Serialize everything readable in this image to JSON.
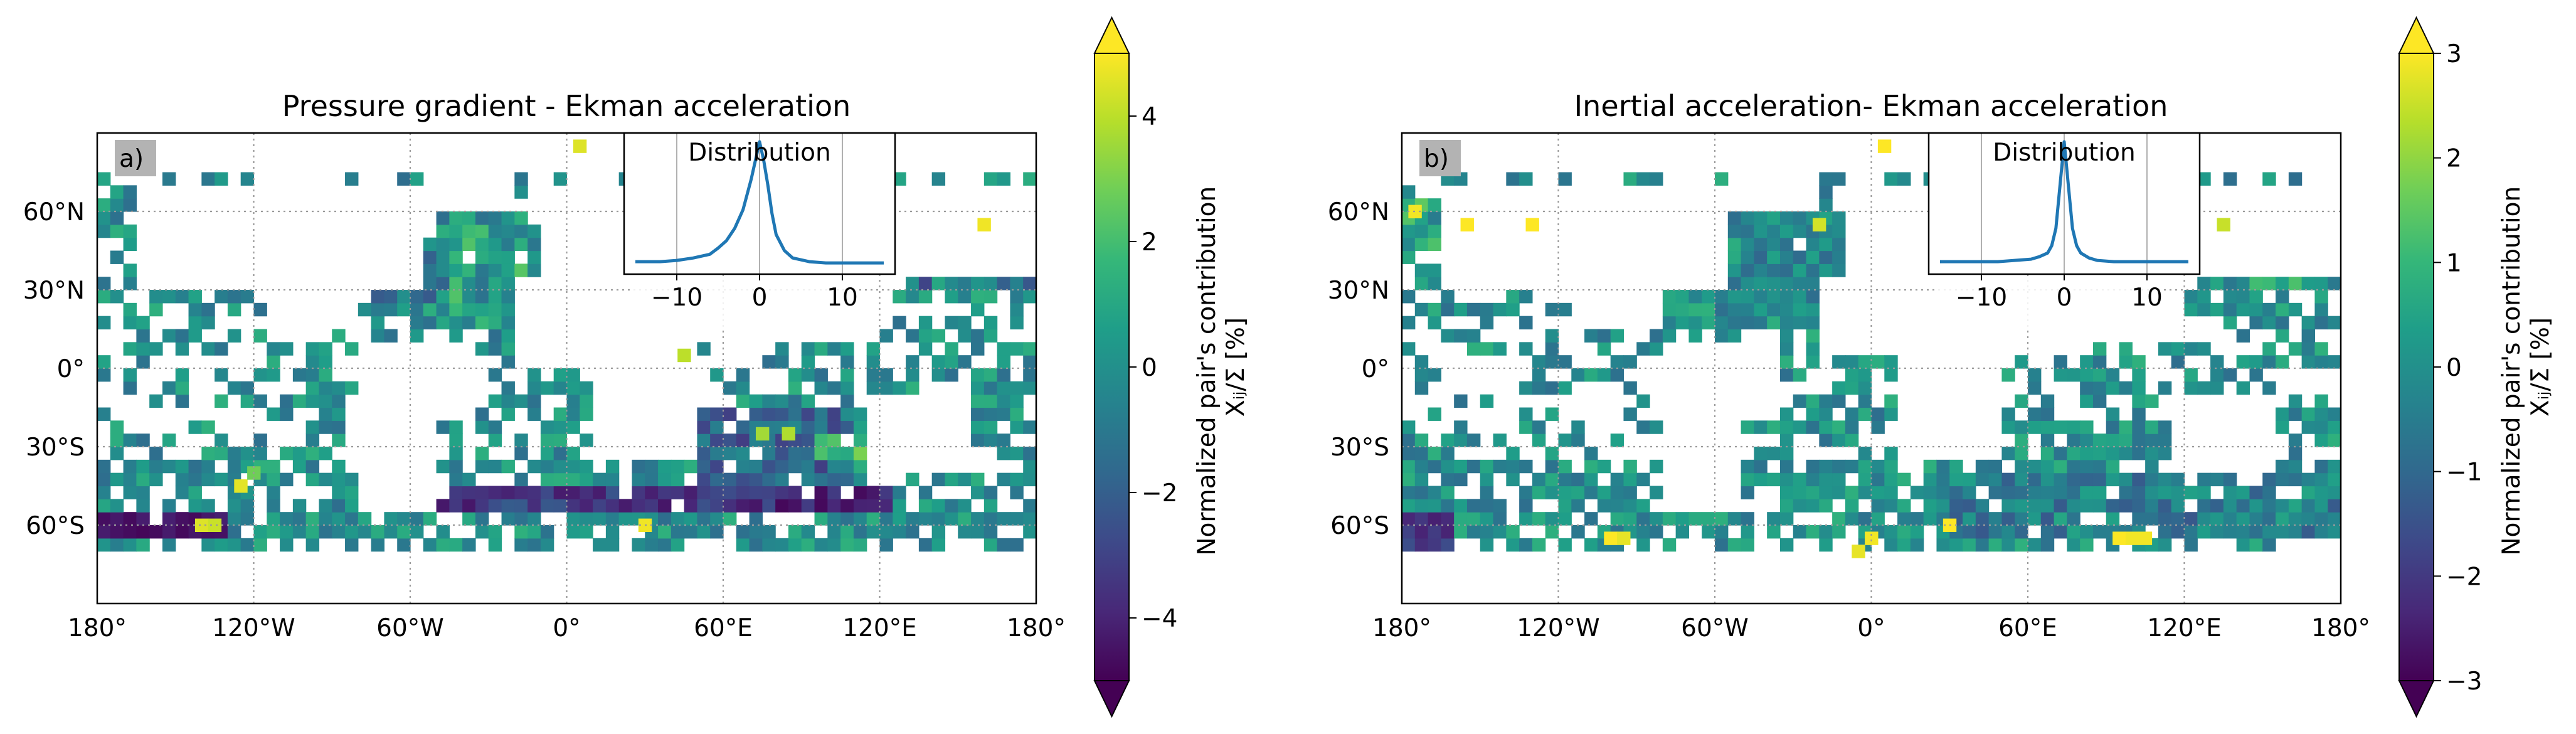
{
  "colors": {
    "land": "#efecdb",
    "ocean": "#ffffff",
    "coastline": "#000000",
    "gridline": "#9a9a9a",
    "dist_line": "#1f77b4",
    "tag_bg": "#b3b3b3",
    "viridis": [
      "#440154",
      "#482878",
      "#3e4989",
      "#31688e",
      "#26828e",
      "#1f9e89",
      "#35b779",
      "#6ece58",
      "#b5de2b",
      "#fde725"
    ]
  },
  "chart_data": [
    {
      "type": "heatmap",
      "title": "Pressure gradient - Ekman acceleration",
      "panel_tag": "a)",
      "colormap": "viridis",
      "colorbar": {
        "range": [
          -5,
          5
        ],
        "ticks": [
          -4,
          -2,
          0,
          2,
          4
        ],
        "tick_labels": [
          "−4",
          "−2",
          "0",
          "2",
          "4"
        ],
        "label_line1": "Normalized pair's contribution",
        "label_line2": "Xᵢⱼ/Σ [%]",
        "extend": "both"
      },
      "x_ticks": [
        "180°",
        "120°W",
        "60°W",
        "0°",
        "60°E",
        "120°E",
        "180°"
      ],
      "y_ticks": [
        "60°N",
        "30°N",
        "0°",
        "30°S",
        "60°S"
      ],
      "grid": true,
      "inset": {
        "title": "Distribution",
        "x_ticks": [
          "−10",
          "0",
          "10"
        ],
        "xlim": [
          -15,
          15
        ],
        "x": [
          -15,
          -12,
          -10,
          -8,
          -6,
          -5,
          -4,
          -3,
          -2,
          -1,
          -0.5,
          0,
          0.5,
          1,
          1.5,
          2,
          3,
          4,
          6,
          8,
          10,
          12,
          15
        ],
        "y": [
          0.03,
          0.03,
          0.04,
          0.06,
          0.09,
          0.14,
          0.2,
          0.3,
          0.45,
          0.7,
          0.85,
          1.0,
          0.85,
          0.65,
          0.42,
          0.25,
          0.12,
          0.06,
          0.03,
          0.02,
          0.02,
          0.02,
          0.02
        ]
      },
      "data": {
        "lat_range": [
          -90,
          90
        ],
        "lon_range": [
          -180,
          180
        ],
        "cell_degrees": 5,
        "features": [
          {
            "lon_min": -45,
            "lon_max": -15,
            "lat_min": 15,
            "lat_max": 55,
            "value": 0.6,
            "noise": 1.8
          },
          {
            "lon_min": -75,
            "lon_max": -45,
            "lat_min": 25,
            "lat_max": 45,
            "value": -0.8,
            "noise": 1.5
          },
          {
            "lon_min": 50,
            "lon_max": 110,
            "lat_min": -45,
            "lat_max": -15,
            "value": -1.6,
            "noise": 1.6
          },
          {
            "lon_min": 95,
            "lon_max": 115,
            "lat_min": -35,
            "lat_max": -25,
            "value": 2.2,
            "noise": 1.2
          },
          {
            "lon_min": 130,
            "lon_max": 180,
            "lat_min": 30,
            "lat_max": 50,
            "value": -1.0,
            "noise": 2.0
          },
          {
            "lon_min": 135,
            "lon_max": 180,
            "lat_min": 50,
            "lat_max": 65,
            "value": -0.6,
            "noise": 2.4
          },
          {
            "lon_min": -180,
            "lon_max": -130,
            "lat_min": -65,
            "lat_max": -55,
            "value": -4.5,
            "noise": 0.4
          },
          {
            "lon_min": -60,
            "lon_max": 20,
            "lat_min": -55,
            "lat_max": -45,
            "value": -3.2,
            "noise": 1.2
          },
          {
            "lon_min": 20,
            "lon_max": 80,
            "lat_min": -55,
            "lat_max": -45,
            "value": -3.4,
            "noise": 1.0
          },
          {
            "lon_min": 80,
            "lon_max": 125,
            "lat_min": -55,
            "lat_max": -45,
            "value": -4.0,
            "noise": 0.8
          }
        ],
        "highlights": [
          {
            "lon": -140,
            "lat": -60,
            "value": 4.5
          },
          {
            "lon": -135,
            "lat": -60,
            "value": 4.2
          },
          {
            "lon": -125,
            "lat": -45,
            "value": 4.6
          },
          {
            "lon": 30,
            "lat": -60,
            "value": 4.8
          },
          {
            "lon": 5,
            "lat": 85,
            "value": 4.5
          },
          {
            "lon": 45,
            "lat": 5,
            "value": 4.0
          },
          {
            "lon": 160,
            "lat": 55,
            "value": 4.8
          },
          {
            "lon": 75,
            "lat": -25,
            "value": 3.6
          },
          {
            "lon": 85,
            "lat": -25,
            "value": 3.8
          },
          {
            "lon": -120,
            "lat": -40,
            "value": 2.8
          }
        ]
      }
    },
    {
      "type": "heatmap",
      "title": "Inertial acceleration- Ekman acceleration",
      "panel_tag": "b)",
      "colormap": "viridis",
      "colorbar": {
        "range": [
          -3,
          3
        ],
        "ticks": [
          -3,
          -2,
          -1,
          0,
          1,
          2,
          3
        ],
        "tick_labels": [
          "−3",
          "−2",
          "−1",
          "0",
          "1",
          "2",
          "3"
        ],
        "label_line1": "Normalized pair's contribution",
        "label_line2": "Xᵢⱼ/Σ [%]",
        "extend": "both"
      },
      "x_ticks": [
        "180°",
        "120°W",
        "60°W",
        "0°",
        "60°E",
        "120°E",
        "180°"
      ],
      "y_ticks": [
        "60°N",
        "30°N",
        "0°",
        "30°S",
        "60°S"
      ],
      "grid": true,
      "inset": {
        "title": "Distribution",
        "x_ticks": [
          "−10",
          "0",
          "10"
        ],
        "xlim": [
          -15,
          15
        ],
        "x": [
          -15,
          -12,
          -10,
          -8,
          -6,
          -4,
          -3,
          -2,
          -1.5,
          -1,
          -0.5,
          0,
          0.5,
          1,
          1.5,
          2,
          3,
          4,
          6,
          8,
          10,
          12,
          15
        ],
        "y": [
          0.03,
          0.03,
          0.03,
          0.03,
          0.04,
          0.05,
          0.07,
          0.1,
          0.16,
          0.3,
          0.65,
          1.0,
          0.65,
          0.3,
          0.16,
          0.1,
          0.06,
          0.04,
          0.03,
          0.03,
          0.03,
          0.03,
          0.03
        ]
      },
      "data": {
        "lat_range": [
          -90,
          90
        ],
        "lon_range": [
          -180,
          180
        ],
        "cell_degrees": 5,
        "features": [
          {
            "lon_min": -50,
            "lon_max": -15,
            "lat_min": 20,
            "lat_max": 50,
            "value": -0.3,
            "noise": 1.2
          },
          {
            "lon_min": -180,
            "lon_max": -150,
            "lat_min": 45,
            "lat_max": 65,
            "value": 0.5,
            "noise": 1.8
          },
          {
            "lon_min": 130,
            "lon_max": 180,
            "lat_min": 30,
            "lat_max": 65,
            "value": 0.2,
            "noise": 1.8
          },
          {
            "lon_min": 20,
            "lon_max": 180,
            "lat_min": -65,
            "lat_max": -40,
            "value": -0.4,
            "noise": 1.6
          },
          {
            "lon_min": -180,
            "lon_max": -160,
            "lat_min": -70,
            "lat_max": -55,
            "value": -2.0,
            "noise": 0.8
          }
        ],
        "highlights": [
          {
            "lon": -175,
            "lat": 60,
            "value": 2.9
          },
          {
            "lon": -155,
            "lat": 55,
            "value": 3.0
          },
          {
            "lon": -130,
            "lat": 55,
            "value": 3.0
          },
          {
            "lon": -100,
            "lat": -65,
            "value": 3.0
          },
          {
            "lon": -95,
            "lat": -65,
            "value": 2.8
          },
          {
            "lon": 0,
            "lat": -65,
            "value": 2.9
          },
          {
            "lon": -5,
            "lat": -70,
            "value": 2.8
          },
          {
            "lon": 30,
            "lat": -60,
            "value": 3.0
          },
          {
            "lon": 95,
            "lat": -65,
            "value": 3.0
          },
          {
            "lon": 100,
            "lat": -65,
            "value": 2.9
          },
          {
            "lon": 105,
            "lat": -65,
            "value": 2.9
          },
          {
            "lon": 5,
            "lat": 85,
            "value": 3.0
          },
          {
            "lon": 135,
            "lat": 55,
            "value": 2.5
          },
          {
            "lon": -20,
            "lat": 55,
            "value": 2.6
          }
        ]
      }
    }
  ]
}
